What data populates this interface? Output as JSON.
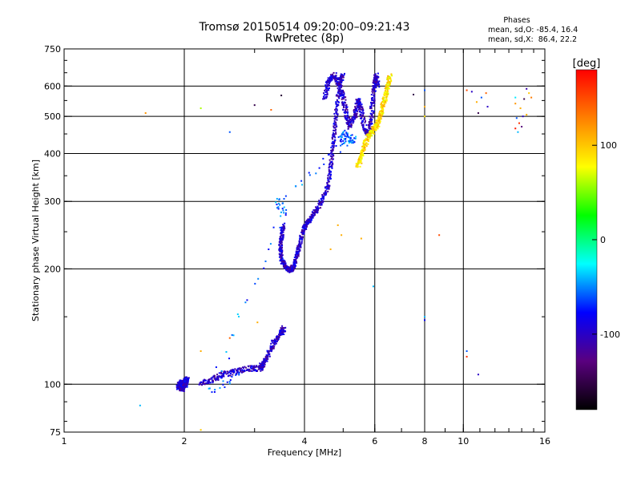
{
  "chart_data": {
    "type": "scatter",
    "title": "Tromsø 20150514 09:20:00–09:21:43",
    "subtitle": "RwPretec (8p)",
    "xlabel": "Frequency [MHz]",
    "ylabel": "Stationary phase Virtual Height [km]",
    "x_scale": "log",
    "y_scale": "log",
    "xlim": [
      1,
      16
    ],
    "ylim": [
      75,
      750
    ],
    "x_ticks": [
      1,
      2,
      4,
      6,
      8,
      10,
      16
    ],
    "y_ticks": [
      75,
      100,
      200,
      300,
      400,
      500,
      600,
      750
    ],
    "x_tick_labels": [
      "1",
      "2",
      "4",
      "6",
      "8",
      "10",
      "16"
    ],
    "y_tick_labels": [
      "75",
      "100",
      "200",
      "300",
      "400",
      "500",
      "600",
      "750"
    ],
    "x_grid": [
      2,
      4,
      6,
      8,
      10
    ],
    "y_grid": [
      100,
      200,
      300,
      400,
      500,
      600
    ],
    "grid": true,
    "phase_info": {
      "title": "Phases",
      "o_line": "mean, sd,O: -85.4, 16.4",
      "x_line": "mean, sd,X:  86.4, 22.2"
    },
    "colorbar": {
      "label": "[deg]",
      "range": [
        -180,
        180
      ],
      "ticks": [
        100,
        0,
        -100
      ],
      "tick_labels": [
        "100",
        "0",
        "-100"
      ],
      "colormap": [
        "#000000",
        "#5a007f",
        "#0000ff",
        "#00ffff",
        "#00ff00",
        "#ffff00",
        "#ff8000",
        "#ff0000"
      ]
    },
    "series": [
      {
        "traces": [
          {
            "phase": -95,
            "spread": 0.012,
            "count": 6,
            "points": [
              [
                1.93,
                98
              ],
              [
                1.96,
                101
              ],
              [
                2.0,
                100
              ],
              [
                2.03,
                103
              ],
              [
                1.98,
                97
              ],
              [
                1.95,
                100
              ],
              [
                2.02,
                99
              ]
            ]
          },
          {
            "phase": -100,
            "spread": 0.012,
            "count": 4,
            "points": [
              [
                2.2,
                100
              ],
              [
                2.35,
                103
              ],
              [
                2.5,
                106
              ],
              [
                2.7,
                108
              ],
              [
                2.9,
                110
              ],
              [
                3.1,
                110
              ],
              [
                3.15,
                113
              ],
              [
                3.25,
                120
              ],
              [
                3.35,
                128
              ],
              [
                3.5,
                136
              ],
              [
                3.55,
                140
              ]
            ]
          },
          {
            "phase": -98,
            "spread": 0.01,
            "count": 4,
            "points": [
              [
                3.55,
                260
              ],
              [
                3.5,
                242
              ],
              [
                3.48,
                226
              ],
              [
                3.5,
                212
              ],
              [
                3.56,
                204
              ],
              [
                3.62,
                200
              ],
              [
                3.7,
                198
              ],
              [
                3.78,
                206
              ],
              [
                3.84,
                218
              ],
              [
                3.9,
                234
              ],
              [
                3.97,
                252
              ],
              [
                4.05,
                262
              ],
              [
                4.15,
                272
              ],
              [
                4.3,
                286
              ],
              [
                4.45,
                306
              ],
              [
                4.58,
                330
              ],
              [
                4.66,
                370
              ],
              [
                4.72,
                420
              ],
              [
                4.78,
                480
              ],
              [
                4.84,
                560
              ],
              [
                4.92,
                620
              ],
              [
                5.0,
                640
              ]
            ]
          },
          {
            "phase": -100,
            "spread": 0.012,
            "count": 4,
            "points": [
              [
                4.5,
                560
              ],
              [
                4.6,
                620
              ],
              [
                4.75,
                640
              ],
              [
                4.9,
                605
              ],
              [
                5.02,
                550
              ],
              [
                5.1,
                500
              ],
              [
                5.2,
                470
              ],
              [
                5.35,
                505
              ],
              [
                5.45,
                550
              ],
              [
                5.55,
                520
              ],
              [
                5.65,
                470
              ],
              [
                5.75,
                445
              ],
              [
                5.85,
                470
              ],
              [
                5.92,
                530
              ],
              [
                5.98,
                600
              ],
              [
                6.05,
                640
              ],
              [
                6.1,
                600
              ]
            ]
          },
          {
            "phase": 90,
            "spread": 0.012,
            "count": 4,
            "points": [
              [
                5.45,
                370
              ],
              [
                5.55,
                395
              ],
              [
                5.65,
                420
              ],
              [
                5.8,
                445
              ],
              [
                5.95,
                460
              ],
              [
                6.1,
                475
              ],
              [
                6.2,
                500
              ],
              [
                6.3,
                535
              ],
              [
                6.4,
                575
              ],
              [
                6.5,
                610
              ],
              [
                6.55,
                640
              ]
            ]
          },
          {
            "phase": -60,
            "spread": 0.02,
            "count": 2,
            "points": [
              [
                4.9,
                430
              ],
              [
                5.0,
                450
              ],
              [
                5.2,
                430
              ],
              [
                5.3,
                440
              ],
              [
                3.45,
                300
              ],
              [
                3.55,
                280
              ],
              [
                2.35,
                97
              ],
              [
                2.8,
                108
              ]
            ]
          }
        ],
        "scattered": [
          {
            "x": 1.55,
            "y": 88,
            "phase": -40
          },
          {
            "x": 1.6,
            "y": 510,
            "phase": 120
          },
          {
            "x": 2.2,
            "y": 525,
            "phase": 60
          },
          {
            "x": 2.2,
            "y": 76,
            "phase": 100
          },
          {
            "x": 2.2,
            "y": 122,
            "phase": 110
          },
          {
            "x": 2.6,
            "y": 455,
            "phase": -60
          },
          {
            "x": 2.6,
            "y": 132,
            "phase": 140
          },
          {
            "x": 3.0,
            "y": 535,
            "phase": -150
          },
          {
            "x": 3.3,
            "y": 520,
            "phase": 140
          },
          {
            "x": 3.5,
            "y": 567,
            "phase": -160
          },
          {
            "x": 3.05,
            "y": 145,
            "phase": 110
          },
          {
            "x": 4.65,
            "y": 225,
            "phase": 110
          },
          {
            "x": 4.85,
            "y": 260,
            "phase": 110
          },
          {
            "x": 4.95,
            "y": 245,
            "phase": 110
          },
          {
            "x": 5.55,
            "y": 240,
            "phase": 110
          },
          {
            "x": 5.95,
            "y": 180,
            "phase": -40
          },
          {
            "x": 7.5,
            "y": 570,
            "phase": -150
          },
          {
            "x": 8.0,
            "y": 585,
            "phase": -60
          },
          {
            "x": 8.0,
            "y": 530,
            "phase": 110
          },
          {
            "x": 8.0,
            "y": 500,
            "phase": 90
          },
          {
            "x": 8.0,
            "y": 150,
            "phase": -40
          },
          {
            "x": 8.0,
            "y": 147,
            "phase": -80
          },
          {
            "x": 8.7,
            "y": 245,
            "phase": 150
          },
          {
            "x": 10.2,
            "y": 585,
            "phase": 150
          },
          {
            "x": 10.5,
            "y": 580,
            "phase": -100
          },
          {
            "x": 10.8,
            "y": 545,
            "phase": 110
          },
          {
            "x": 11.1,
            "y": 560,
            "phase": -60
          },
          {
            "x": 11.5,
            "y": 530,
            "phase": -100
          },
          {
            "x": 11.4,
            "y": 575,
            "phase": 140
          },
          {
            "x": 10.9,
            "y": 510,
            "phase": -150
          },
          {
            "x": 10.2,
            "y": 122,
            "phase": -60
          },
          {
            "x": 10.2,
            "y": 118,
            "phase": 160
          },
          {
            "x": 10.9,
            "y": 106,
            "phase": -100
          },
          {
            "x": 13.5,
            "y": 560,
            "phase": -30
          },
          {
            "x": 13.5,
            "y": 540,
            "phase": 120
          },
          {
            "x": 13.9,
            "y": 525,
            "phase": 110
          },
          {
            "x": 14.2,
            "y": 555,
            "phase": -150
          },
          {
            "x": 14.6,
            "y": 575,
            "phase": 100
          },
          {
            "x": 13.6,
            "y": 495,
            "phase": -60
          },
          {
            "x": 13.8,
            "y": 480,
            "phase": 160
          },
          {
            "x": 14.1,
            "y": 500,
            "phase": -100
          },
          {
            "x": 13.5,
            "y": 465,
            "phase": 170
          },
          {
            "x": 13.7,
            "y": 455,
            "phase": -40
          },
          {
            "x": 14.0,
            "y": 470,
            "phase": -130
          },
          {
            "x": 14.4,
            "y": 505,
            "phase": 110
          },
          {
            "x": 14.8,
            "y": 560,
            "phase": 130
          },
          {
            "x": 14.4,
            "y": 590,
            "phase": -110
          }
        ]
      }
    ]
  }
}
